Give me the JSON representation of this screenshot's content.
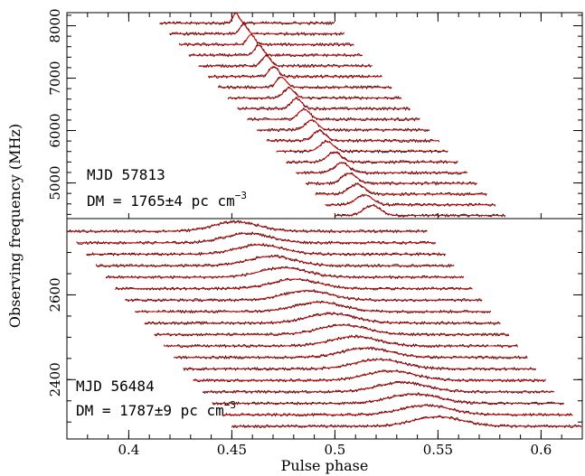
{
  "chart_data": {
    "type": "line",
    "xlabel": "Pulse phase",
    "ylabel": "Observing frequency (MHz)",
    "xlim": [
      0.37,
      0.62
    ],
    "x_ticks": [
      "0.4",
      "0.45",
      "0.5",
      "0.55",
      "0.6"
    ],
    "legend": "none",
    "colors": {
      "data": "#000000",
      "model": "#e00000"
    },
    "panels": [
      {
        "name": "top",
        "ylim": [
          4320,
          8250
        ],
        "y_ticks": [
          "5000",
          "6000",
          "7000",
          "8000"
        ],
        "annotation_line1": "MJD 57813",
        "annotation_line2_prefix": "DM = 1765±4 pc cm",
        "annotation_line2_sup": "−3",
        "n_channels": 19,
        "freq_low": 4380,
        "freq_high": 8050,
        "start_phase_low": 0.5,
        "start_phase_high": 0.415,
        "end_phase_low": 0.583,
        "end_phase_high": 0.5,
        "peak_phase_low": 0.518,
        "peak_phase_high": 0.452,
        "peak_width_low": 0.004,
        "peak_width_high": 0.0015,
        "peak_height": 0.85,
        "noise": 0.08
      },
      {
        "name": "bottom",
        "ylim": [
          2260,
          2780
        ],
        "y_ticks": [
          "2400",
          "2600"
        ],
        "annotation_line1": "MJD 56484",
        "annotation_line2_prefix": "DM = 1787±9 pc cm",
        "annotation_line2_sup": "−3",
        "n_channels": 18,
        "freq_low": 2290,
        "freq_high": 2750,
        "start_phase_low": 0.45,
        "start_phase_high": 0.37,
        "end_phase_low": 0.62,
        "end_phase_high": 0.545,
        "peak_phase_low": 0.55,
        "peak_phase_high": 0.452,
        "peak_width_low": 0.012,
        "peak_width_high": 0.011,
        "peak_height": 0.75,
        "noise": 0.07
      }
    ]
  }
}
